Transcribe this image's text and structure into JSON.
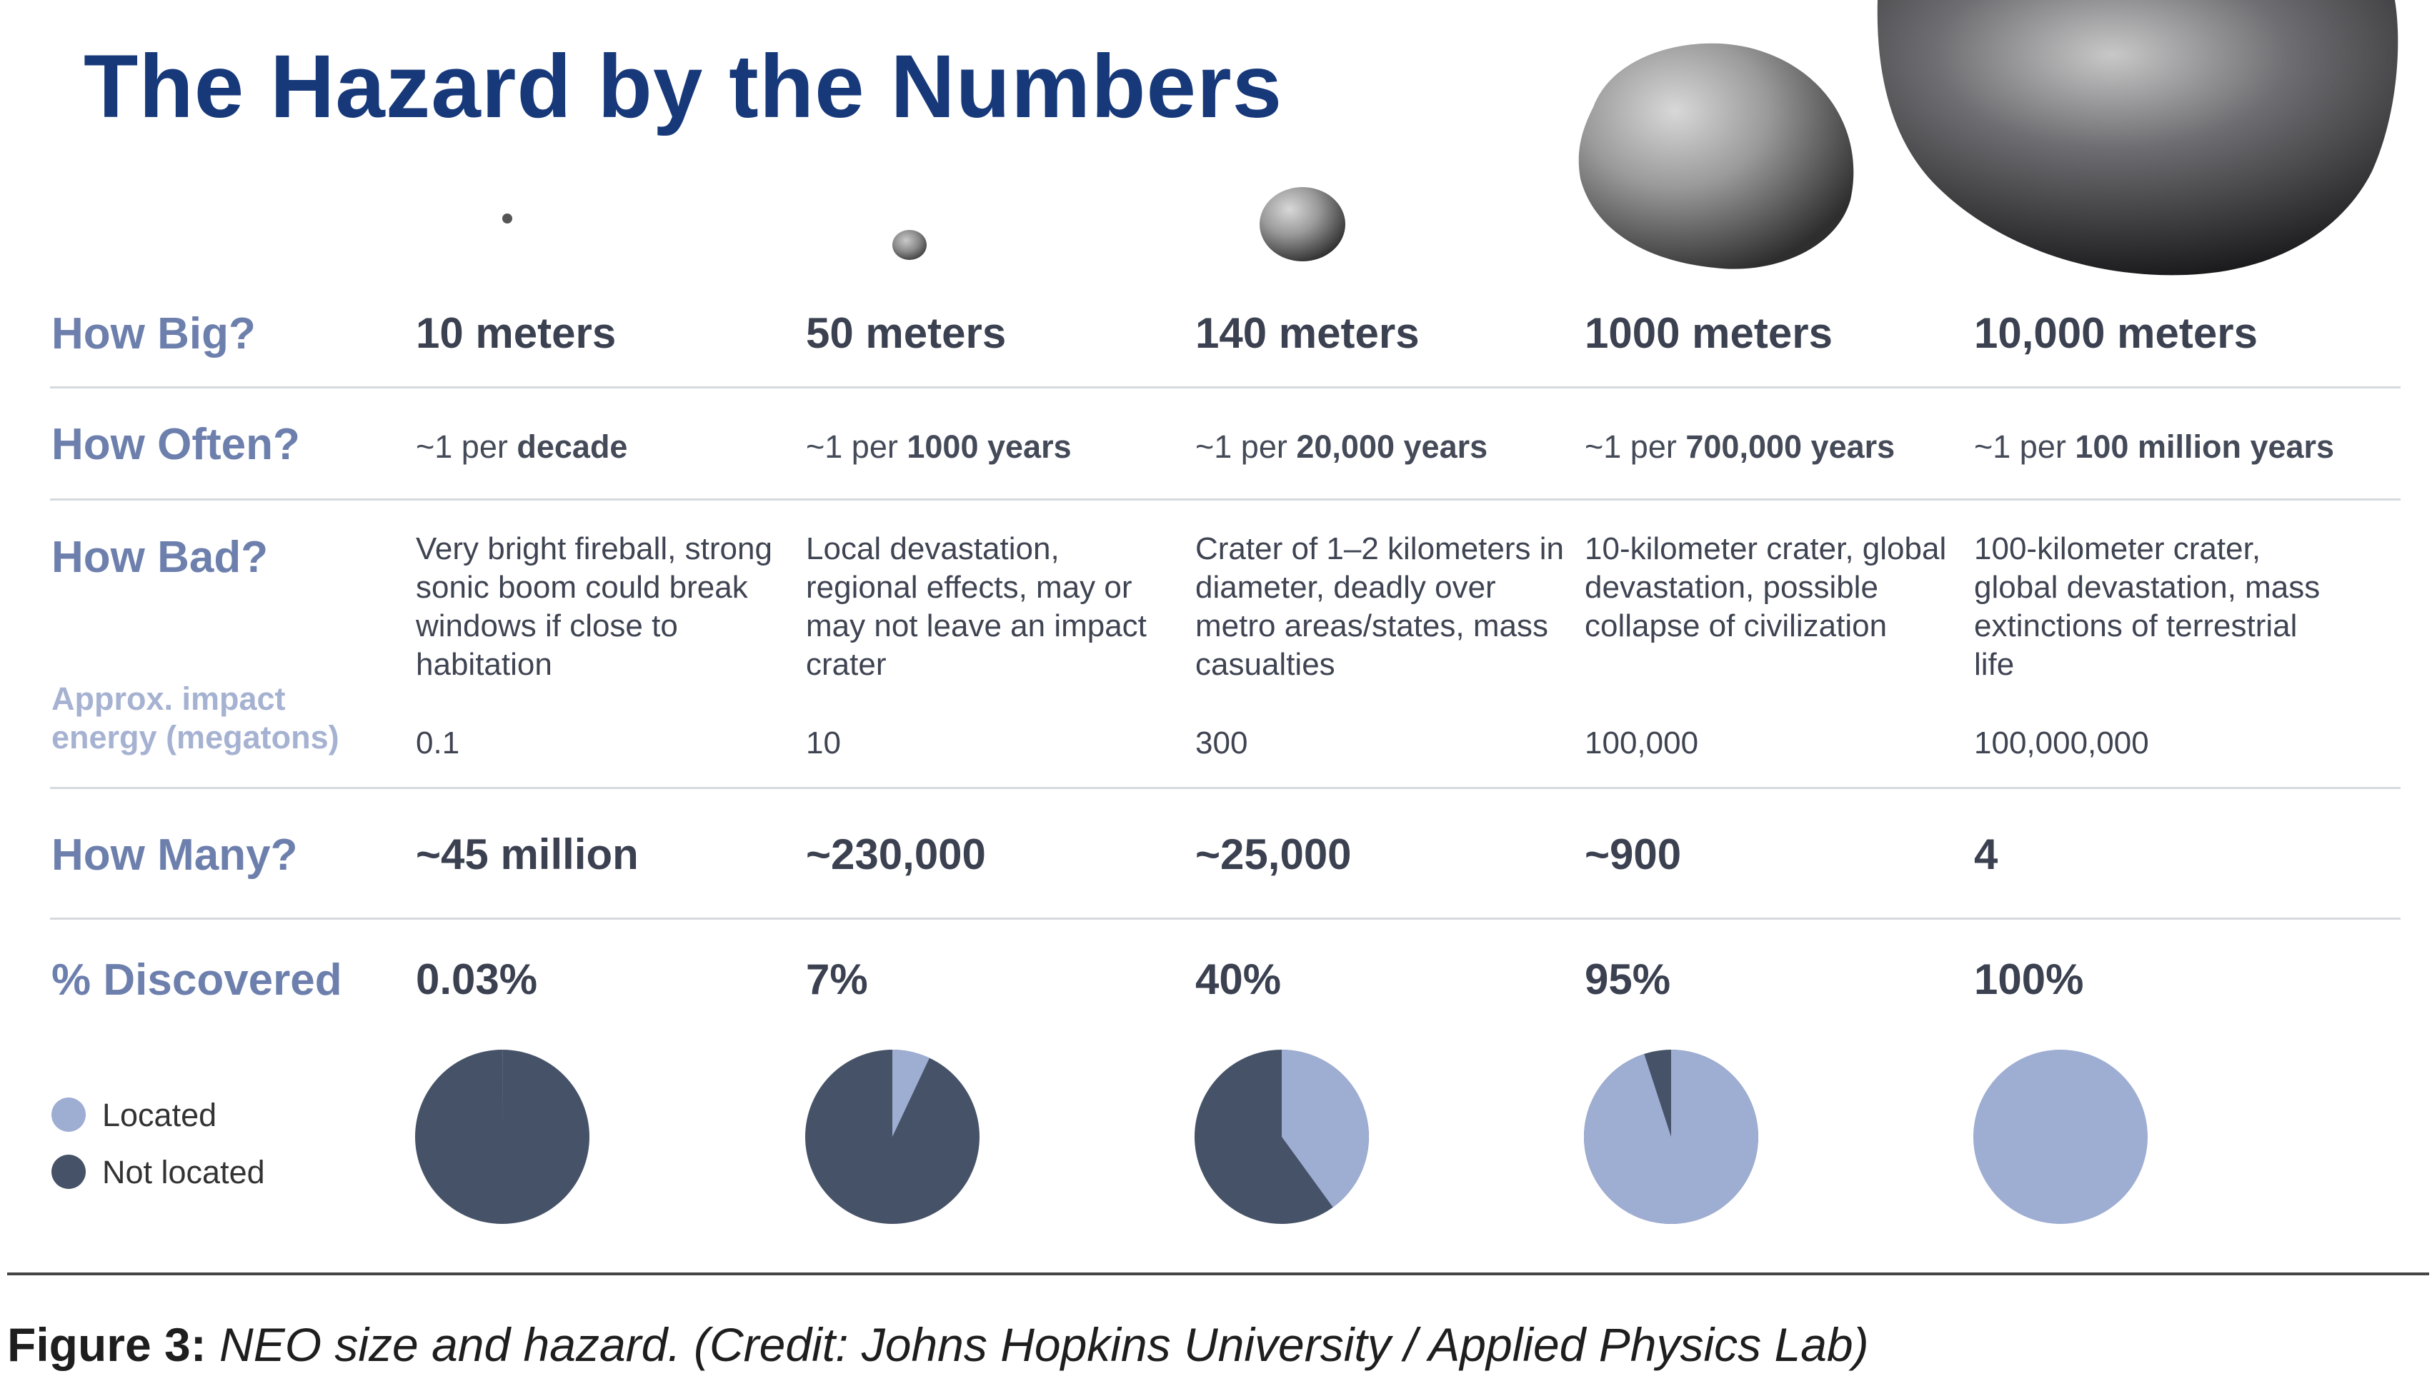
{
  "title": "The Hazard by the Numbers",
  "row_labels": {
    "how_big": "How Big?",
    "how_often": "How Often?",
    "how_bad": "How Bad?",
    "energy": "Approx. impact energy (megatons)",
    "how_many": "How Many?",
    "discovered": "% Discovered"
  },
  "columns": [
    {
      "size": "10 meters",
      "freq_prefix": "~1 per",
      "freq_bold": "decade",
      "bad": "Very bright fireball, strong sonic boom could break windows if close to habitation",
      "energy": "0.1",
      "how_many": "~45 million",
      "pct_label": "0.03%",
      "located": 0.03
    },
    {
      "size": "50 meters",
      "freq_prefix": "~1 per",
      "freq_bold": "1000 years",
      "bad": "Local devastation, regional effects, may or may not leave an impact crater",
      "energy": "10",
      "how_many": "~230,000",
      "pct_label": "7%",
      "located": 7
    },
    {
      "size": "140 meters",
      "freq_prefix": "~1 per",
      "freq_bold": "20,000 years",
      "bad": "Crater of 1–2 kilometers in diameter, deadly over metro areas/states, mass casualties",
      "energy": "300",
      "how_many": "~25,000",
      "pct_label": "40%",
      "located": 40
    },
    {
      "size": "1000 meters",
      "freq_prefix": "~1 per",
      "freq_bold": "700,000 years",
      "bad": "10-kilometer crater, global devastation, possible collapse of civilization",
      "energy": "100,000",
      "how_many": "~900",
      "pct_label": "95%",
      "located": 95
    },
    {
      "size": "10,000 meters",
      "freq_prefix": "~1 per",
      "freq_bold": "100 million years",
      "bad": "100-kilometer crater, global devastation, mass extinctions of terrestrial life",
      "energy": "100,000,000",
      "how_many": "4",
      "pct_label": "100%",
      "located": 100
    }
  ],
  "legend": {
    "located": "Located",
    "not_located": "Not located"
  },
  "colors": {
    "located": "#9eadd2",
    "not_located": "#465267",
    "title": "#17397a",
    "row_label": "#6d7fac"
  },
  "caption": {
    "bold": "Figure 3:",
    "italic": " NEO size and hazard. (Credit: Johns Hopkins University / Applied Physics Lab)"
  },
  "chart_data": {
    "type": "pie",
    "title": "% Discovered",
    "categories": [
      "10 meters",
      "50 meters",
      "140 meters",
      "1000 meters",
      "10,000 meters"
    ],
    "series": [
      {
        "name": "Located",
        "values": [
          0.03,
          7,
          40,
          95,
          100
        ]
      },
      {
        "name": "Not located",
        "values": [
          99.97,
          93,
          60,
          5,
          0
        ]
      }
    ],
    "legend": "bottom-left"
  }
}
